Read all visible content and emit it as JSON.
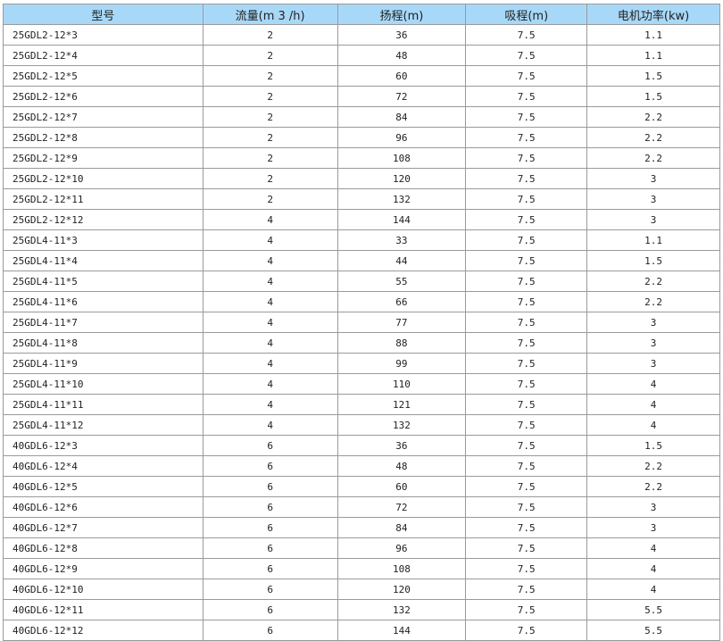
{
  "table": {
    "headers": [
      "型号",
      "流量(m 3 /h)",
      "扬程(m)",
      "吸程(m)",
      "电机功率(kw)"
    ],
    "rows": [
      [
        "25GDL2-12*3",
        "2",
        "36",
        "7.5",
        "1.1"
      ],
      [
        "25GDL2-12*4",
        "2",
        "48",
        "7.5",
        "1.1"
      ],
      [
        "25GDL2-12*5",
        "2",
        "60",
        "7.5",
        "1.5"
      ],
      [
        "25GDL2-12*6",
        "2",
        "72",
        "7.5",
        "1.5"
      ],
      [
        "25GDL2-12*7",
        "2",
        "84",
        "7.5",
        "2.2"
      ],
      [
        "25GDL2-12*8",
        "2",
        "96",
        "7.5",
        "2.2"
      ],
      [
        "25GDL2-12*9",
        "2",
        "108",
        "7.5",
        "2.2"
      ],
      [
        "25GDL2-12*10",
        "2",
        "120",
        "7.5",
        "3"
      ],
      [
        "25GDL2-12*11",
        "2",
        "132",
        "7.5",
        "3"
      ],
      [
        "25GDL2-12*12",
        "4",
        "144",
        "7.5",
        "3"
      ],
      [
        "25GDL4-11*3",
        "4",
        "33",
        "7.5",
        "1.1"
      ],
      [
        "25GDL4-11*4",
        "4",
        "44",
        "7.5",
        "1.5"
      ],
      [
        "25GDL4-11*5",
        "4",
        "55",
        "7.5",
        "2.2"
      ],
      [
        "25GDL4-11*6",
        "4",
        "66",
        "7.5",
        "2.2"
      ],
      [
        "25GDL4-11*7",
        "4",
        "77",
        "7.5",
        "3"
      ],
      [
        "25GDL4-11*8",
        "4",
        "88",
        "7.5",
        "3"
      ],
      [
        "25GDL4-11*9",
        "4",
        "99",
        "7.5",
        "3"
      ],
      [
        "25GDL4-11*10",
        "4",
        "110",
        "7.5",
        "4"
      ],
      [
        "25GDL4-11*11",
        "4",
        "121",
        "7.5",
        "4"
      ],
      [
        "25GDL4-11*12",
        "4",
        "132",
        "7.5",
        "4"
      ],
      [
        "40GDL6-12*3",
        "6",
        "36",
        "7.5",
        "1.5"
      ],
      [
        "40GDL6-12*4",
        "6",
        "48",
        "7.5",
        "2.2"
      ],
      [
        "40GDL6-12*5",
        "6",
        "60",
        "7.5",
        "2.2"
      ],
      [
        "40GDL6-12*6",
        "6",
        "72",
        "7.5",
        "3"
      ],
      [
        "40GDL6-12*7",
        "6",
        "84",
        "7.5",
        "3"
      ],
      [
        "40GDL6-12*8",
        "6",
        "96",
        "7.5",
        "4"
      ],
      [
        "40GDL6-12*9",
        "6",
        "108",
        "7.5",
        "4"
      ],
      [
        "40GDL6-12*10",
        "6",
        "120",
        "7.5",
        "4"
      ],
      [
        "40GDL6-12*11",
        "6",
        "132",
        "7.5",
        "5.5"
      ],
      [
        "40GDL6-12*12",
        "6",
        "144",
        "7.5",
        "5.5"
      ]
    ]
  }
}
